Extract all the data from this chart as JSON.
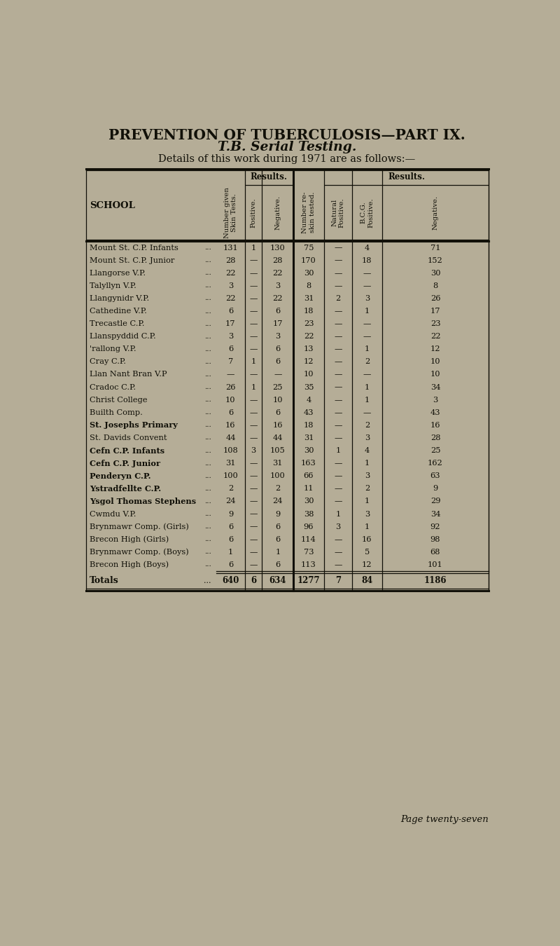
{
  "title1": "PREVENTION OF TUBERCULOSIS—PART IX.",
  "title2": "T.B. Serial Testing.",
  "subtitle": "Details of this work during 1971 are as follows:—",
  "bg_color": "#b5ad97",
  "text_color": "#111008",
  "col_headers": [
    "Number given\nSkin Tests.",
    "Positive.",
    "Negative.",
    "Number re-\nskin tested.",
    "Natural\nPositive.",
    "B.C.G.\nPositive.",
    "Negative."
  ],
  "schools": [
    "Mount St. C.P. Infants",
    "Mount St. C.P. Junior",
    "Llangorse V.P.",
    "Talyllyn V.P.",
    "Llangynidr V.P.",
    "Cathedine V.P.",
    "Trecastle C.P.",
    "Llanspyddid C.P.",
    "'rallong V.P.",
    "Cray C.P.",
    "Llan Nant Bran V.P",
    "Cradoc C.P.",
    "Christ College",
    "Builth Comp.",
    "St. Josephs Primary",
    "St. Davids Convent",
    "Cefn C.P. Infants",
    "Cefn C.P. Junior",
    "Penderyn C.P.",
    "Ystradfellte C.P.",
    "Ysgol Thomas Stephens",
    "Cwmdu V.P.",
    "Brynmawr Comp. (Girls)",
    "Brecon High (Girls)",
    "Brynmawr Comp. (Boys)",
    "Brecon High (Boys)"
  ],
  "school_bold": [
    false,
    false,
    false,
    false,
    false,
    false,
    false,
    false,
    false,
    false,
    false,
    false,
    false,
    false,
    true,
    false,
    true,
    true,
    true,
    true,
    true,
    false,
    false,
    false,
    false,
    false
  ],
  "data": [
    [
      131,
      1,
      130,
      75,
      null,
      4,
      71
    ],
    [
      28,
      null,
      28,
      170,
      null,
      18,
      152
    ],
    [
      22,
      null,
      22,
      30,
      null,
      null,
      30
    ],
    [
      3,
      null,
      3,
      8,
      null,
      null,
      8
    ],
    [
      22,
      null,
      22,
      31,
      2,
      3,
      26
    ],
    [
      6,
      null,
      6,
      18,
      null,
      1,
      17
    ],
    [
      17,
      null,
      17,
      23,
      null,
      null,
      23
    ],
    [
      3,
      null,
      3,
      22,
      null,
      null,
      22
    ],
    [
      6,
      null,
      6,
      13,
      null,
      1,
      12
    ],
    [
      7,
      1,
      6,
      12,
      null,
      2,
      10
    ],
    [
      null,
      null,
      null,
      10,
      null,
      null,
      10
    ],
    [
      26,
      1,
      25,
      35,
      null,
      1,
      34
    ],
    [
      10,
      null,
      10,
      4,
      null,
      1,
      3
    ],
    [
      6,
      null,
      6,
      43,
      null,
      null,
      43
    ],
    [
      16,
      null,
      16,
      18,
      null,
      2,
      16
    ],
    [
      44,
      null,
      44,
      31,
      null,
      3,
      28
    ],
    [
      108,
      3,
      105,
      30,
      1,
      4,
      25
    ],
    [
      31,
      null,
      31,
      163,
      null,
      1,
      162
    ],
    [
      100,
      null,
      100,
      66,
      null,
      3,
      63
    ],
    [
      2,
      null,
      2,
      11,
      null,
      2,
      9
    ],
    [
      24,
      null,
      24,
      30,
      null,
      1,
      29
    ],
    [
      9,
      null,
      9,
      38,
      1,
      3,
      34
    ],
    [
      6,
      null,
      6,
      96,
      3,
      1,
      92
    ],
    [
      6,
      null,
      6,
      114,
      null,
      16,
      98
    ],
    [
      1,
      null,
      1,
      73,
      null,
      5,
      68
    ],
    [
      6,
      null,
      6,
      113,
      null,
      12,
      101
    ]
  ],
  "totals": [
    640,
    6,
    634,
    1277,
    7,
    84,
    1186
  ],
  "page_text": "Page twenty-seven"
}
